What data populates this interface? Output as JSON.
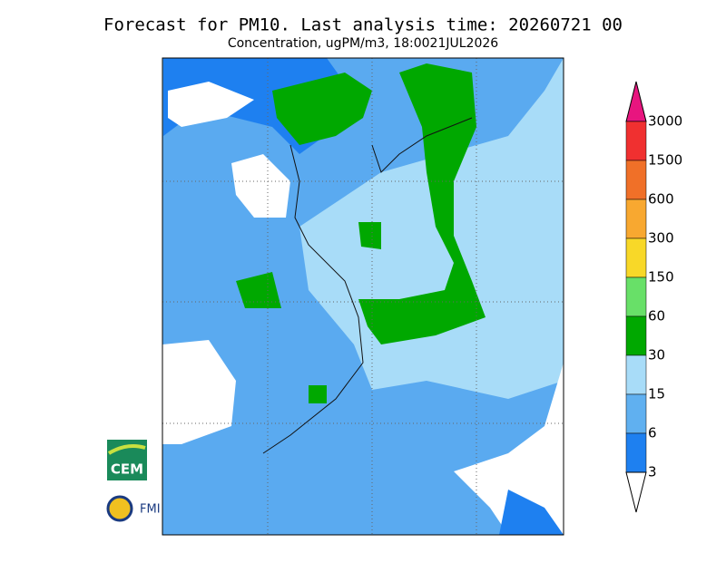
{
  "header": {
    "title": "Forecast for PM10. Last analysis time: 20260721 00",
    "subtitle": "Concentration, ugPM/m3, 18:0021JUL2026"
  },
  "legend": {
    "labels": [
      "3000",
      "1500",
      "600",
      "300",
      "150",
      "60",
      "30",
      "15",
      "6",
      "3"
    ],
    "top_color": "#e8157f",
    "colors": [
      "#f03030",
      "#f07028",
      "#f8a830",
      "#f8d828",
      "#68e068",
      "#00a800",
      "#a8dcf8",
      "#60b0f0",
      "#1e80f0"
    ],
    "bottom_color": "#ffffff"
  },
  "logos": {
    "cem": "CEM",
    "fmi": "FMI"
  }
}
